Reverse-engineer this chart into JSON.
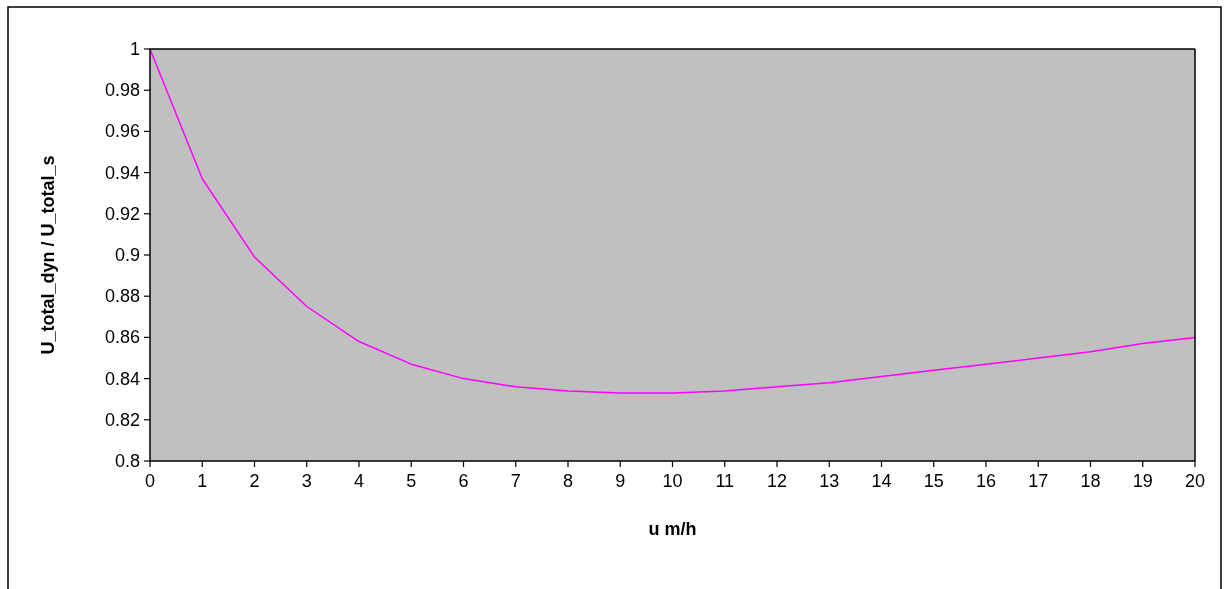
{
  "chart_data": {
    "type": "line",
    "xlabel": "u m/h",
    "ylabel": "U_total_dyn / U_total_s",
    "x": [
      0,
      1,
      2,
      3,
      4,
      5,
      6,
      7,
      8,
      9,
      10,
      11,
      12,
      13,
      14,
      15,
      16,
      17,
      18,
      19,
      20
    ],
    "series": [
      {
        "color": "#ff00ff",
        "values": [
          1.0,
          0.937,
          0.899,
          0.875,
          0.858,
          0.847,
          0.84,
          0.836,
          0.834,
          0.833,
          0.833,
          0.834,
          0.836,
          0.838,
          0.841,
          0.844,
          0.847,
          0.85,
          0.853,
          0.857,
          0.86
        ]
      }
    ],
    "xlim": [
      0,
      20
    ],
    "xticks": [
      0,
      1,
      2,
      3,
      4,
      5,
      6,
      7,
      8,
      9,
      10,
      11,
      12,
      13,
      14,
      15,
      16,
      17,
      18,
      19,
      20
    ],
    "ylim": [
      0.8,
      1
    ],
    "yticks": [
      0.8,
      0.82,
      0.84,
      0.86,
      0.88,
      0.9,
      0.92,
      0.94,
      0.96,
      0.98,
      1
    ],
    "grid": false,
    "marker": "none",
    "line_style": "solid"
  }
}
